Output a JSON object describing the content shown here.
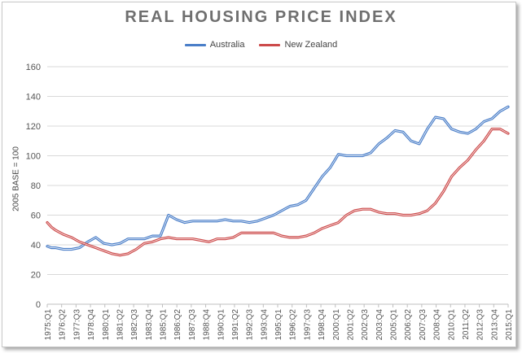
{
  "chart_data": {
    "type": "line",
    "title": "REAL HOUSING PRICE INDEX",
    "xlabel": "",
    "ylabel": "2005 BASE = 100",
    "ylim": [
      0,
      160
    ],
    "yticks": [
      0,
      20,
      40,
      60,
      80,
      100,
      120,
      140,
      160
    ],
    "grid": true,
    "legend": "top-center",
    "categories": [
      "1975:Q1",
      "1976:Q2",
      "1977:Q3",
      "1978:Q4",
      "1980:Q1",
      "1981:Q2",
      "1982:Q3",
      "1983:Q4",
      "1985:Q1",
      "1986:Q2",
      "1987:Q3",
      "1988:Q4",
      "1990:Q1",
      "1991:Q2",
      "1992:Q3",
      "1993:Q4",
      "1995:Q1",
      "1996:Q2",
      "1997:Q3",
      "1998:Q4",
      "2000:Q1",
      "2001:Q2",
      "2002:Q3",
      "2003:Q4",
      "2005:Q1",
      "2006:Q2",
      "2007:Q3",
      "2008:Q4",
      "2010:Q1",
      "2011:Q2",
      "2012:Q3",
      "2013:Q4",
      "2015:Q1"
    ],
    "series": [
      {
        "name": "Australia",
        "color": "#4a7ec8",
        "points": [
          [
            0,
            39
          ],
          [
            0.5,
            38
          ],
          [
            1,
            38
          ],
          [
            2,
            37
          ],
          [
            3,
            37
          ],
          [
            4,
            38
          ],
          [
            5,
            42
          ],
          [
            6,
            45
          ],
          [
            7,
            41
          ],
          [
            8,
            40
          ],
          [
            9,
            41
          ],
          [
            10,
            44
          ],
          [
            11,
            44
          ],
          [
            12,
            44
          ],
          [
            13,
            46
          ],
          [
            14,
            46
          ],
          [
            15,
            60
          ],
          [
            16,
            57
          ],
          [
            17,
            55
          ],
          [
            18,
            56
          ],
          [
            19,
            56
          ],
          [
            20,
            56
          ],
          [
            21,
            56
          ],
          [
            22,
            57
          ],
          [
            23,
            56
          ],
          [
            24,
            56
          ],
          [
            25,
            55
          ],
          [
            26,
            56
          ],
          [
            27,
            58
          ],
          [
            28,
            60
          ],
          [
            29,
            63
          ],
          [
            30,
            66
          ],
          [
            31,
            67
          ],
          [
            32,
            70
          ],
          [
            33,
            78
          ],
          [
            34,
            86
          ],
          [
            35,
            92
          ],
          [
            36,
            101
          ],
          [
            37,
            100
          ],
          [
            38,
            100
          ],
          [
            39,
            100
          ],
          [
            40,
            102
          ],
          [
            41,
            108
          ],
          [
            42,
            112
          ],
          [
            43,
            117
          ],
          [
            44,
            116
          ],
          [
            45,
            110
          ],
          [
            46,
            108
          ],
          [
            47,
            118
          ],
          [
            48,
            126
          ],
          [
            49,
            125
          ],
          [
            50,
            118
          ],
          [
            51,
            116
          ],
          [
            52,
            115
          ],
          [
            53,
            118
          ],
          [
            54,
            123
          ],
          [
            55,
            125
          ],
          [
            56,
            130
          ],
          [
            57,
            133
          ]
        ]
      },
      {
        "name": "New Zealand",
        "color": "#cc4a4a",
        "points": [
          [
            0,
            55
          ],
          [
            0.5,
            52
          ],
          [
            1,
            50
          ],
          [
            2,
            47
          ],
          [
            3,
            45
          ],
          [
            4,
            42
          ],
          [
            5,
            40
          ],
          [
            6,
            38
          ],
          [
            7,
            36
          ],
          [
            8,
            34
          ],
          [
            9,
            33
          ],
          [
            10,
            34
          ],
          [
            11,
            37
          ],
          [
            12,
            41
          ],
          [
            13,
            42
          ],
          [
            14,
            44
          ],
          [
            15,
            45
          ],
          [
            16,
            44
          ],
          [
            17,
            44
          ],
          [
            18,
            44
          ],
          [
            19,
            43
          ],
          [
            20,
            42
          ],
          [
            21,
            44
          ],
          [
            22,
            44
          ],
          [
            23,
            45
          ],
          [
            24,
            48
          ],
          [
            25,
            48
          ],
          [
            26,
            48
          ],
          [
            27,
            48
          ],
          [
            28,
            48
          ],
          [
            29,
            46
          ],
          [
            30,
            45
          ],
          [
            31,
            45
          ],
          [
            32,
            46
          ],
          [
            33,
            48
          ],
          [
            34,
            51
          ],
          [
            35,
            53
          ],
          [
            36,
            55
          ],
          [
            37,
            60
          ],
          [
            38,
            63
          ],
          [
            39,
            64
          ],
          [
            40,
            64
          ],
          [
            41,
            62
          ],
          [
            42,
            61
          ],
          [
            43,
            61
          ],
          [
            44,
            60
          ],
          [
            45,
            60
          ],
          [
            46,
            61
          ],
          [
            47,
            63
          ],
          [
            48,
            68
          ],
          [
            49,
            76
          ],
          [
            50,
            86
          ],
          [
            51,
            92
          ],
          [
            52,
            97
          ],
          [
            53,
            104
          ],
          [
            54,
            110
          ],
          [
            55,
            118
          ],
          [
            56,
            118
          ],
          [
            57,
            115
          ]
        ]
      }
    ]
  }
}
